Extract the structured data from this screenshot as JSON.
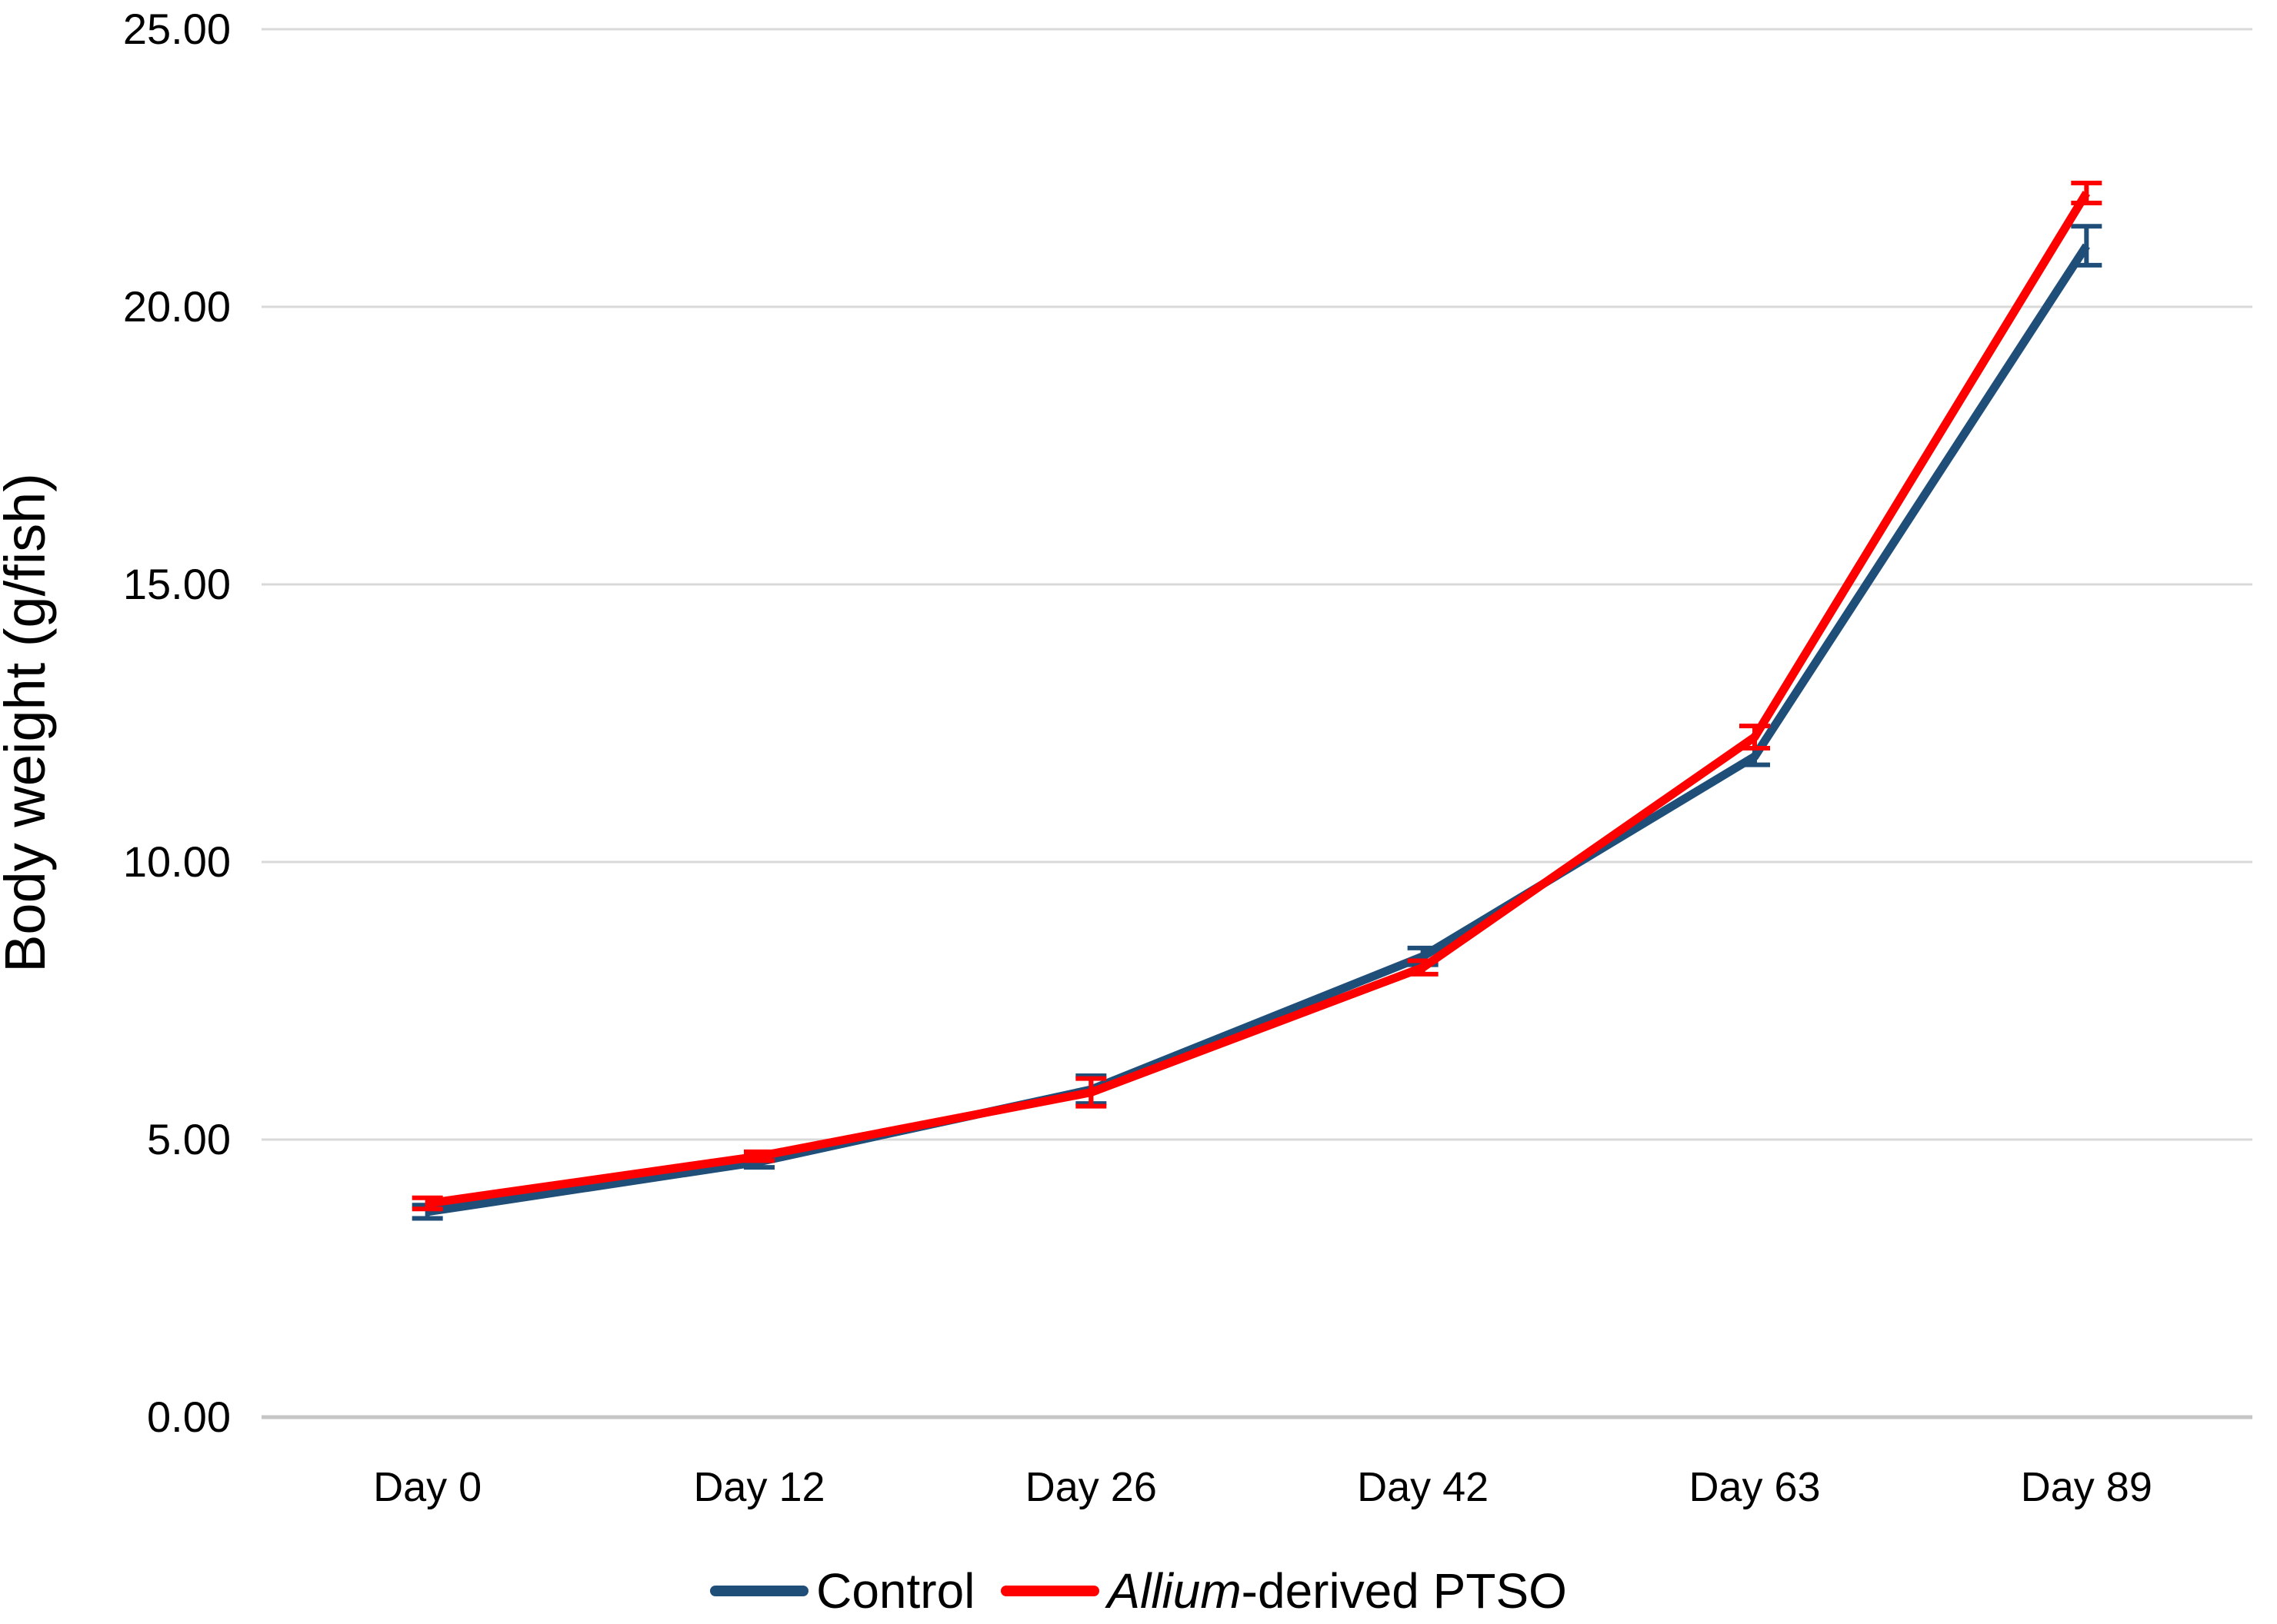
{
  "chart_data": {
    "type": "line",
    "title": "",
    "xlabel": "",
    "ylabel": "Body weight (g/fish)",
    "ylim": [
      0,
      25
    ],
    "ytick_step": 5,
    "ytick_labels": [
      "0.00",
      "5.00",
      "10.00",
      "15.00",
      "20.00",
      "25.00"
    ],
    "categories": [
      "Day 0",
      "Day 12",
      "Day 26",
      "Day 42",
      "Day 63",
      "Day 89"
    ],
    "grid": true,
    "legend_position": "bottom",
    "error_bars": true,
    "series": [
      {
        "name": "Control",
        "name_italic_prefix": "",
        "name_rest": "Control",
        "color": "#1F4E79",
        "values": [
          3.7,
          4.6,
          5.9,
          8.3,
          11.9,
          21.1
        ],
        "errors": [
          0.12,
          0.1,
          0.25,
          0.15,
          0.15,
          0.35
        ]
      },
      {
        "name": "Allium-derived PTSO",
        "name_italic_prefix": "Allium",
        "name_rest": "-derived PTSO",
        "color": "#FF0000",
        "values": [
          3.85,
          4.7,
          5.85,
          8.1,
          12.25,
          22.05
        ],
        "errors": [
          0.1,
          0.08,
          0.25,
          0.12,
          0.2,
          0.18
        ]
      }
    ]
  },
  "colors": {
    "gridline": "#D9D9D9",
    "axis_line": "#C6C6C6",
    "text": "#000000",
    "background": "#FFFFFF"
  }
}
